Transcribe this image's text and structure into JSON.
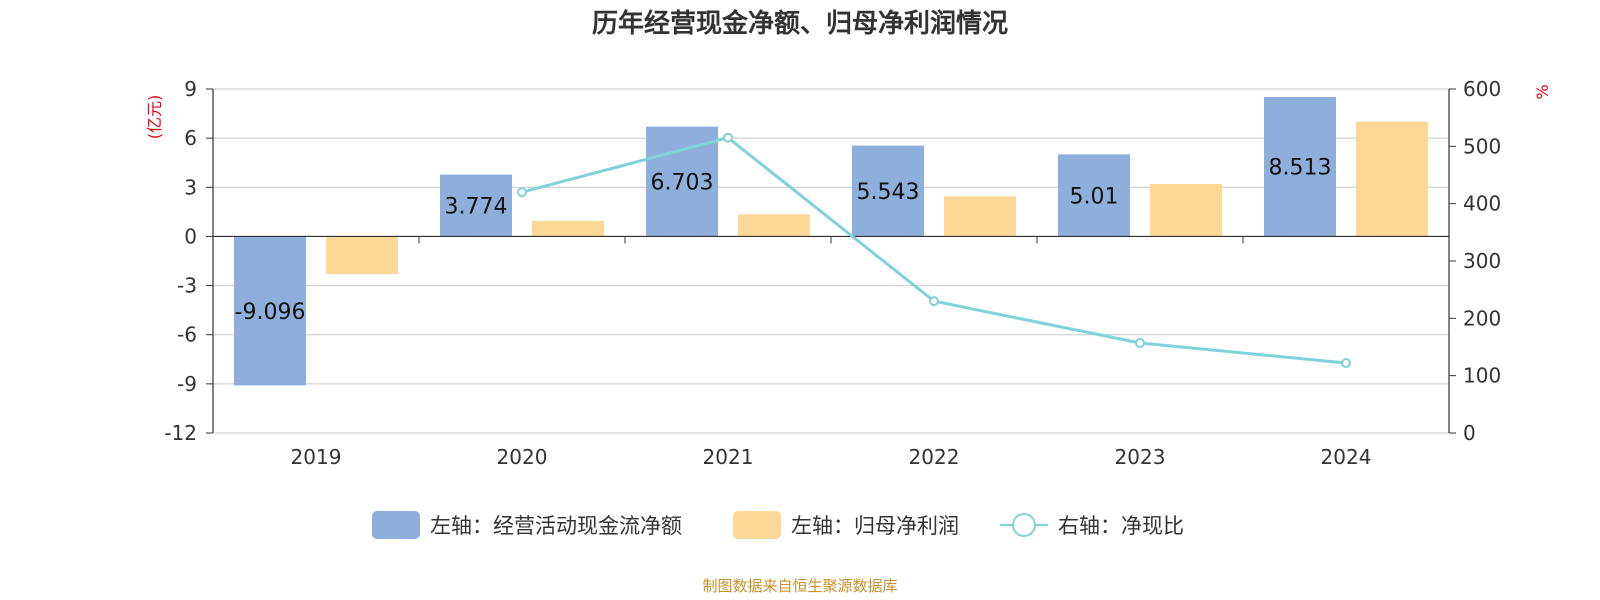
{
  "chart_data": {
    "type": "bar",
    "title": "历年经营现金净额、归母净利润情况",
    "categories": [
      "2019",
      "2020",
      "2021",
      "2022",
      "2023",
      "2024"
    ],
    "left_axis": {
      "unit": "(亿元)",
      "ylim": [
        -12,
        9
      ],
      "ticks": [
        "9",
        "6",
        "3",
        "0",
        "-3",
        "-6",
        "-9",
        "-12"
      ]
    },
    "right_axis": {
      "unit": "%",
      "ylim": [
        0,
        600
      ],
      "ticks": [
        "600",
        "500",
        "400",
        "300",
        "200",
        "100",
        "0"
      ]
    },
    "grid": true,
    "legend_position": "bottom",
    "series": [
      {
        "name": "左轴：经营活动现金流净额",
        "type": "bar",
        "axis": "left",
        "color": "#8eaedb",
        "values": [
          -9.096,
          3.774,
          6.703,
          5.543,
          5.01,
          8.513
        ],
        "labels": [
          "-9.096",
          "3.774",
          "6.703",
          "5.543",
          "5.01",
          "8.513"
        ]
      },
      {
        "name": "左轴：归母净利润",
        "type": "bar",
        "axis": "left",
        "color": "#fdd796",
        "values": [
          -2.3,
          0.95,
          1.35,
          2.45,
          3.2,
          7.0
        ]
      },
      {
        "name": "右轴：净现比",
        "type": "line",
        "axis": "right",
        "color": "#7fd3d8",
        "values": [
          null,
          420,
          515,
          230,
          157,
          122
        ]
      }
    ],
    "source": "制图数据来自恒生聚源数据库"
  }
}
